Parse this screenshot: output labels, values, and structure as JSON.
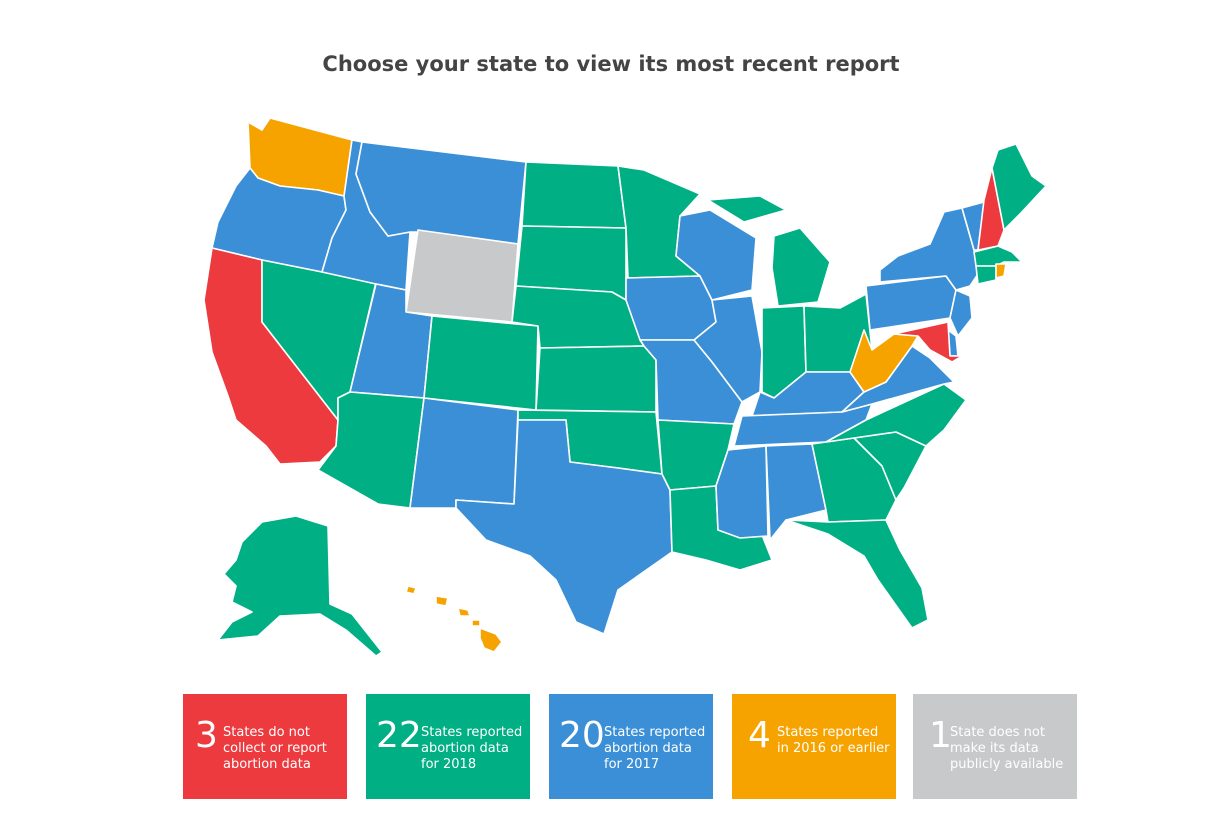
{
  "page": {
    "title": "Choose your state to view its most recent report"
  },
  "colors": {
    "none": "#EC3A3F",
    "y2018": "#00AF84",
    "y2017": "#3A8FD6",
    "y2016": "#F6A300",
    "unavailable": "#C8C9CA"
  },
  "legend": [
    {
      "count": "3",
      "text": "States do not\ncollect or report\nabortion data",
      "category": "none"
    },
    {
      "count": "22",
      "text": "States reported\nabortion data\nfor 2018",
      "category": "y2018"
    },
    {
      "count": "20",
      "text": "States reported\nabortion data\nfor 2017",
      "category": "y2017"
    },
    {
      "count": "4",
      "text": "States reported\nin 2016 or earlier",
      "category": "y2016"
    },
    {
      "count": "1",
      "text": "State does not\nmake its data\npublicly available",
      "category": "unavailable"
    }
  ],
  "states": {
    "WA": "y2016",
    "OR": "y2017",
    "CA": "none",
    "NV": "y2018",
    "ID": "y2017",
    "MT": "y2017",
    "WY": "unavailable",
    "UT": "y2017",
    "AZ": "y2018",
    "CO": "y2018",
    "NM": "y2017",
    "ND": "y2018",
    "SD": "y2018",
    "NE": "y2018",
    "KS": "y2018",
    "OK": "y2018",
    "TX": "y2017",
    "MN": "y2018",
    "IA": "y2017",
    "MO": "y2017",
    "AR": "y2018",
    "LA": "y2018",
    "WI": "y2017",
    "IL": "y2017",
    "MI": "y2018",
    "IN": "y2018",
    "OH": "y2018",
    "KY": "y2017",
    "TN": "y2017",
    "MS": "y2017",
    "AL": "y2017",
    "GA": "y2018",
    "FL": "y2018",
    "SC": "y2018",
    "NC": "y2018",
    "VA": "y2017",
    "WV": "y2016",
    "PA": "y2017",
    "NY": "y2017",
    "VT": "y2017",
    "NH": "none",
    "ME": "y2018",
    "MA": "y2018",
    "RI": "y2016",
    "CT": "y2018",
    "NJ": "y2017",
    "DE": "y2017",
    "MD": "none",
    "AK": "y2018",
    "HI": "y2016"
  }
}
